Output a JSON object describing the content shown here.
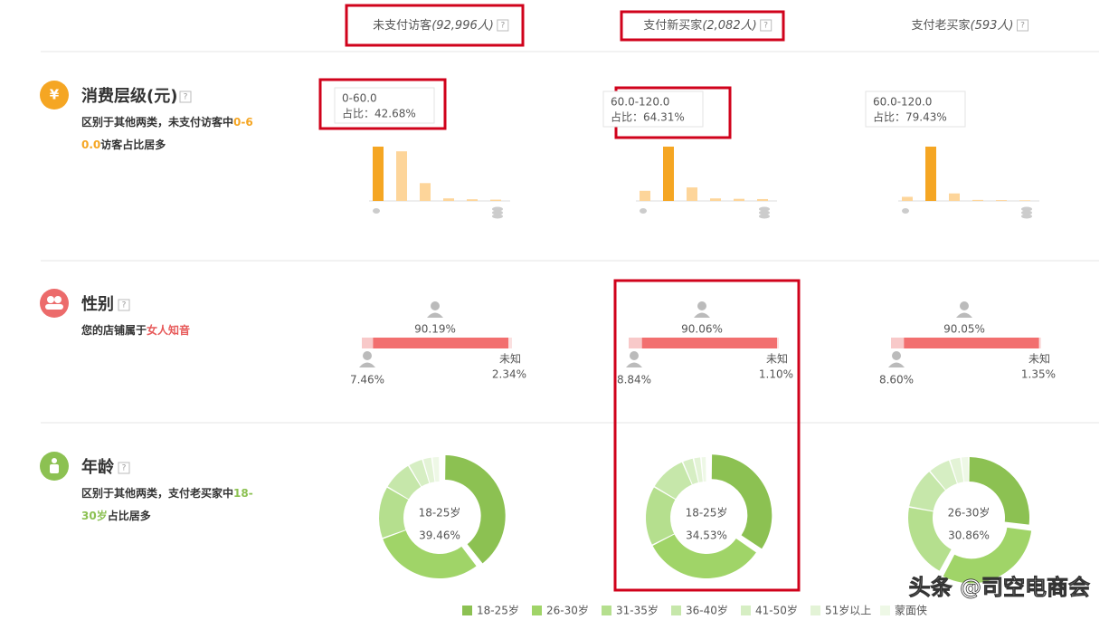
{
  "header": {
    "columns": [
      {
        "name": "未支付访客",
        "count": "(92,996人)"
      },
      {
        "name": "支付新买家",
        "count": "(2,082人)"
      },
      {
        "name": "支付老买家",
        "count": "(593人)"
      }
    ]
  },
  "help_icon": "?",
  "consumption": {
    "title": "消费层级(元)",
    "icon": "¥",
    "desc": [
      "区别于其他两类，未支付访客中",
      "0-60.0",
      "访客占比居多"
    ],
    "columns": [
      {
        "tooltip_range": "0-60.0",
        "tooltip_share": "占比：42.68%",
        "bars": [
          42.68,
          39,
          14,
          2,
          1.3,
          1
        ],
        "highlight": 0
      },
      {
        "tooltip_range": "60.0-120.0",
        "tooltip_share": "占比：64.31%",
        "bars": [
          12,
          64.31,
          16,
          3,
          2.5,
          2.19
        ],
        "highlight": 1
      },
      {
        "tooltip_range": "60.0-120.0",
        "tooltip_share": "占比：79.43%",
        "bars": [
          6,
          79.43,
          11,
          1.5,
          1.2,
          0.87
        ],
        "highlight": 1
      }
    ]
  },
  "gender": {
    "title": "性别",
    "desc": [
      "您的店铺属于",
      "女人知音"
    ],
    "unknown_label": "未知",
    "columns": [
      {
        "female": 90.19,
        "female_label": "90.19%",
        "male": 7.46,
        "male_label": "7.46%",
        "unknown": 2.34,
        "unknown_label": "2.34%"
      },
      {
        "female": 90.06,
        "female_label": "90.06%",
        "male": 8.84,
        "male_label": "8.84%",
        "unknown": 1.1,
        "unknown_label": "1.10%"
      },
      {
        "female": 90.05,
        "female_label": "90.05%",
        "male": 8.6,
        "male_label": "8.60%",
        "unknown": 1.35,
        "unknown_label": "1.35%"
      }
    ]
  },
  "age": {
    "title": "年龄",
    "desc": [
      "区别于其他两类，支付老买家中",
      "18-30岁",
      "占比居多"
    ],
    "groups": [
      "18-25岁",
      "26-30岁",
      "31-35岁",
      "36-40岁",
      "41-50岁",
      "51岁以上",
      "蒙面侠"
    ],
    "colors": [
      "#8cc152",
      "#a0d468",
      "#b5df8e",
      "#c6e7aa",
      "#d6eec3",
      "#e3f3d6",
      "#eef8e6"
    ],
    "columns": [
      {
        "values": [
          39.46,
          30,
          14,
          8,
          4,
          2.5,
          2.04
        ],
        "highlight": 0,
        "center_label": "18-25岁",
        "center_value": "39.46%"
      },
      {
        "values": [
          34.53,
          33,
          16,
          10,
          3,
          2,
          1.47
        ],
        "highlight": 0,
        "center_label": "18-25岁",
        "center_value": "34.53%"
      },
      {
        "values": [
          27,
          30.86,
          20,
          11,
          6,
          3,
          2.14
        ],
        "highlight": 1,
        "center_label": "26-30岁",
        "center_value": "30.86%"
      }
    ]
  },
  "watermark": "头条 @司空电商会"
}
